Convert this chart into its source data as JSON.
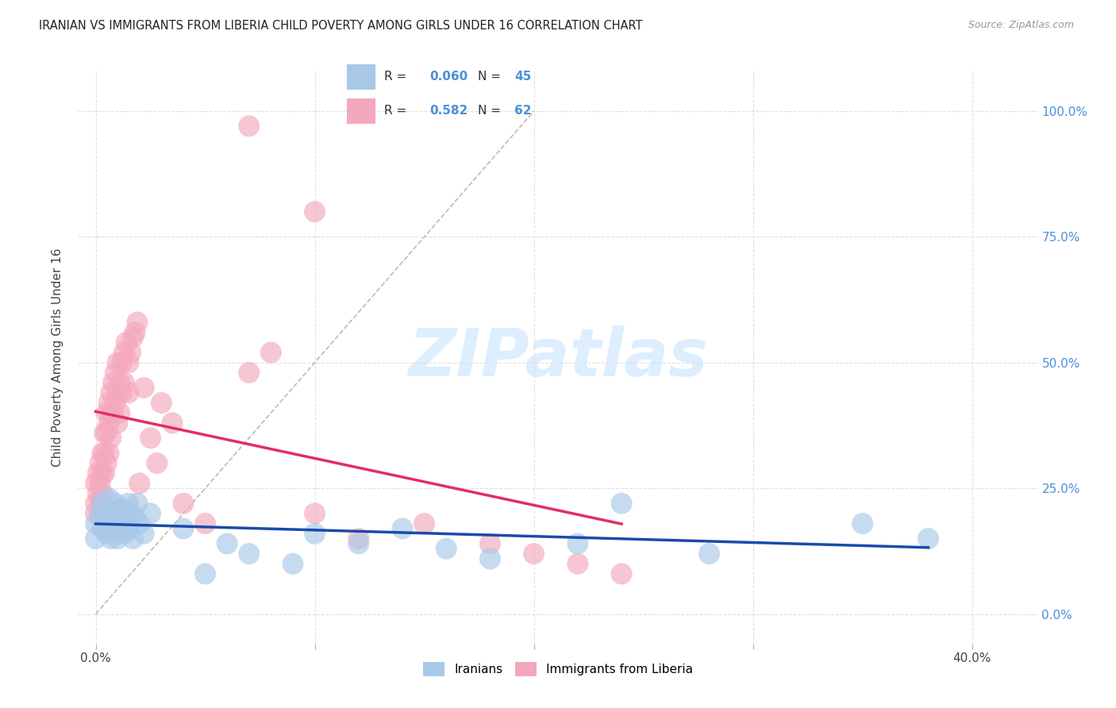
{
  "title": "IRANIAN VS IMMIGRANTS FROM LIBERIA CHILD POVERTY AMONG GIRLS UNDER 16 CORRELATION CHART",
  "source": "Source: ZipAtlas.com",
  "ylabel": "Child Poverty Among Girls Under 16",
  "x_ticks": [
    0.0,
    0.1,
    0.2,
    0.3,
    0.4
  ],
  "x_tick_labels": [
    "0.0%",
    "",
    "",
    "",
    "40.0%"
  ],
  "y_ticks": [
    0.0,
    0.25,
    0.5,
    0.75,
    1.0
  ],
  "y_tick_labels_right": [
    "0.0%",
    "25.0%",
    "50.0%",
    "75.0%",
    "100.0%"
  ],
  "xlim": [
    -0.008,
    0.43
  ],
  "ylim": [
    -0.06,
    1.08
  ],
  "iranian_R": 0.06,
  "iranian_N": 45,
  "liberia_R": 0.582,
  "liberia_N": 62,
  "iranian_color": "#a8c8e8",
  "liberia_color": "#f4a8bc",
  "trendline_iranian_color": "#1a4aaa",
  "trendline_liberia_color": "#e03060",
  "diagonal_color": "#bbbbbb",
  "background_color": "#ffffff",
  "watermark_text": "ZIPatlas",
  "watermark_color": "#ddeeff",
  "iranians_x": [
    0.0,
    0.0,
    0.002,
    0.003,
    0.003,
    0.004,
    0.005,
    0.005,
    0.006,
    0.006,
    0.007,
    0.007,
    0.008,
    0.009,
    0.009,
    0.01,
    0.01,
    0.011,
    0.012,
    0.013,
    0.014,
    0.015,
    0.015,
    0.016,
    0.017,
    0.018,
    0.019,
    0.02,
    0.022,
    0.025,
    0.04,
    0.05,
    0.06,
    0.07,
    0.09,
    0.1,
    0.12,
    0.14,
    0.16,
    0.18,
    0.22,
    0.24,
    0.28,
    0.35,
    0.38
  ],
  "iranians_y": [
    0.18,
    0.15,
    0.2,
    0.22,
    0.17,
    0.19,
    0.21,
    0.16,
    0.23,
    0.18,
    0.2,
    0.15,
    0.19,
    0.22,
    0.17,
    0.2,
    0.15,
    0.18,
    0.21,
    0.16,
    0.19,
    0.22,
    0.17,
    0.2,
    0.15,
    0.19,
    0.22,
    0.18,
    0.16,
    0.2,
    0.17,
    0.08,
    0.14,
    0.12,
    0.1,
    0.16,
    0.14,
    0.17,
    0.13,
    0.11,
    0.14,
    0.22,
    0.12,
    0.18,
    0.15
  ],
  "liberia_x": [
    0.0,
    0.0,
    0.0,
    0.001,
    0.001,
    0.002,
    0.002,
    0.002,
    0.003,
    0.003,
    0.003,
    0.004,
    0.004,
    0.004,
    0.005,
    0.005,
    0.005,
    0.006,
    0.006,
    0.006,
    0.007,
    0.007,
    0.007,
    0.008,
    0.008,
    0.009,
    0.009,
    0.01,
    0.01,
    0.01,
    0.011,
    0.011,
    0.012,
    0.012,
    0.013,
    0.013,
    0.014,
    0.015,
    0.015,
    0.016,
    0.017,
    0.018,
    0.019,
    0.02,
    0.022,
    0.025,
    0.028,
    0.03,
    0.035,
    0.04,
    0.05,
    0.07,
    0.08,
    0.1,
    0.12,
    0.15,
    0.18,
    0.2,
    0.22,
    0.24,
    0.07,
    0.1
  ],
  "liberia_y": [
    0.22,
    0.26,
    0.2,
    0.28,
    0.24,
    0.3,
    0.26,
    0.22,
    0.32,
    0.28,
    0.24,
    0.36,
    0.32,
    0.28,
    0.4,
    0.36,
    0.3,
    0.42,
    0.38,
    0.32,
    0.44,
    0.4,
    0.35,
    0.46,
    0.4,
    0.48,
    0.42,
    0.5,
    0.44,
    0.38,
    0.46,
    0.4,
    0.5,
    0.44,
    0.52,
    0.46,
    0.54,
    0.5,
    0.44,
    0.52,
    0.55,
    0.56,
    0.58,
    0.26,
    0.45,
    0.35,
    0.3,
    0.42,
    0.38,
    0.22,
    0.18,
    0.48,
    0.52,
    0.2,
    0.15,
    0.18,
    0.14,
    0.12,
    0.1,
    0.08,
    0.97,
    0.8
  ]
}
